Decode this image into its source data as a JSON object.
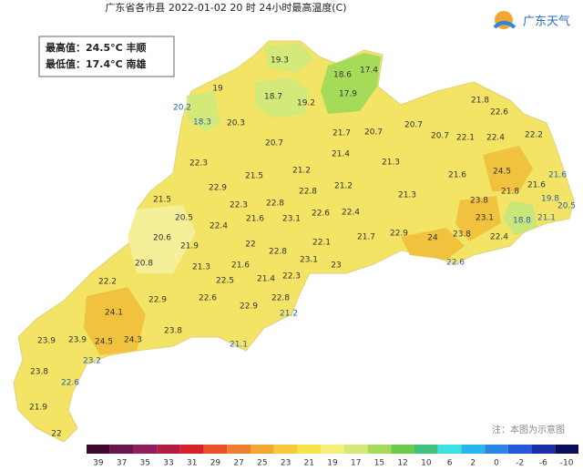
{
  "header": {
    "title": "广东省各市县  2022-01-02 20 时  24小时最高温度(C)",
    "logo": "广东天气"
  },
  "info": {
    "max": "最高值：24.5°C 丰顺",
    "min": "最低值：17.4°C 南雄"
  },
  "note": "注：本图为示意图",
  "stations": [
    19.3,
    18.6,
    17.4,
    19,
    18.7,
    17.9,
    19.2,
    20.2,
    18.3,
    20.3,
    21.8,
    22.6,
    20.7,
    21.7,
    20.7,
    20.7,
    22.1,
    22.4,
    22.2,
    20.7,
    21.4,
    22.3,
    21.3,
    21.2,
    21.5,
    21.6,
    24.5,
    21.6,
    21.2,
    22.9,
    21.8,
    21.6,
    19.8,
    20.5,
    21.5,
    22.8,
    21.3,
    23.8,
    22.3,
    22.8,
    22.6,
    22.4,
    21.6,
    23.1,
    23.1,
    21.1,
    18.8,
    20.5,
    22.4,
    20.6,
    21.9,
    22,
    22.8,
    22.1,
    21.7,
    22.9,
    24,
    23.8,
    22.4,
    23.1,
    23,
    22.6,
    20.8,
    21.3,
    21.6,
    21.4,
    22.3,
    22.2,
    22.5,
    22.9,
    22.6,
    22.8,
    22.9,
    21.2,
    24.1,
    23.8,
    23.9,
    23.9,
    24.5,
    24.3,
    21.1,
    23.2,
    23.8,
    22.6,
    21.9,
    22
  ],
  "legend": {
    "labels": [
      39,
      37,
      35,
      33,
      31,
      29,
      27,
      25,
      23,
      21,
      19,
      17,
      15,
      12,
      10,
      6,
      2,
      0,
      -2,
      -6,
      -10
    ],
    "colors": [
      "#3c0a2e",
      "#6b1550",
      "#901d5e",
      "#b01e42",
      "#d8202a",
      "#e8502a",
      "#ee7f2c",
      "#f4a633",
      "#f7c93d",
      "#f7e34a",
      "#f5ef7a",
      "#d3ea7a",
      "#a6db5a",
      "#6ccb4a",
      "#3fc27e",
      "#3ee0e3",
      "#29b5ee",
      "#2a86e4",
      "#2557d6",
      "#1a2ea8",
      "#0b0f5a"
    ]
  }
}
